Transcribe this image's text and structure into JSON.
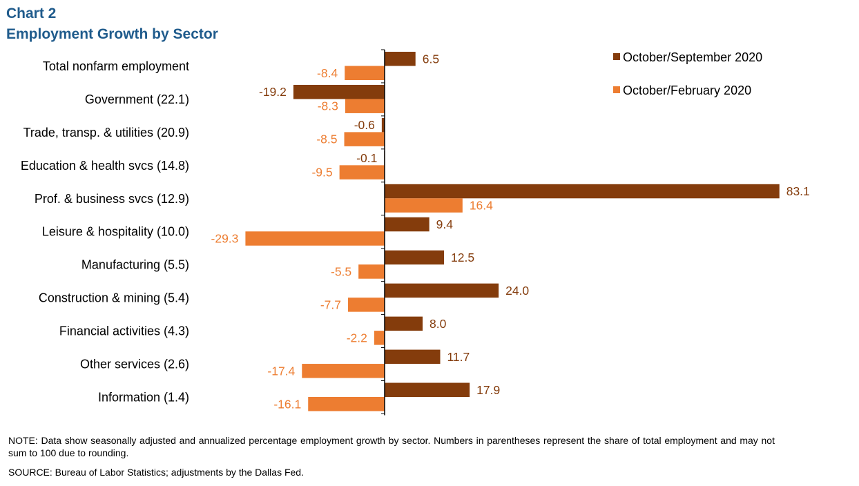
{
  "chart_data": {
    "type": "bar",
    "orientation": "horizontal",
    "title": "Chart 2",
    "subtitle": "Employment  Growth by Sector",
    "categories": [
      "Total nonfarm employment",
      "Government (22.1)",
      "Trade, transp. & utilities (20.9)",
      "Education & health svcs (14.8)",
      "Prof. & business svcs (12.9)",
      "Leisure & hospitality (10.0)",
      "Manufacturing (5.5)",
      "Construction & mining (5.4)",
      "Financial activities (4.3)",
      "Other services (2.6)",
      "Information (1.4)"
    ],
    "series": [
      {
        "name": "October/September 2020",
        "color": "#843c0c",
        "values": [
          6.5,
          -19.2,
          -0.6,
          -0.1,
          83.1,
          9.4,
          12.5,
          24.0,
          8.0,
          11.7,
          17.9
        ],
        "labels": [
          "6.5",
          "-19.2",
          "-0.6",
          "-0.1",
          "83.1",
          "9.4",
          "12.5",
          "24.0",
          "8.0",
          "11.7",
          "17.9"
        ]
      },
      {
        "name": "October/February 2020",
        "color": "#ed7d31",
        "values": [
          -8.4,
          -8.3,
          -8.5,
          -9.5,
          16.4,
          -29.3,
          -5.5,
          -7.7,
          -2.2,
          -17.4,
          -16.1
        ],
        "labels": [
          "-8.4",
          "-8.3",
          "-8.5",
          "-9.5",
          "16.4",
          "-29.3",
          "-5.5",
          "-7.7",
          "-2.2",
          "-17.4",
          "-16.1"
        ]
      }
    ],
    "legend_position": "top-right",
    "grid": false
  },
  "note": "NOTE:  Data show seasonally adjusted and annualized percentage employment growth by sector. Numbers in parentheses  represent the share of total employment  and may not sum to 100 due to rounding.",
  "source": "SOURCE:  Bureau of Labor Statistics; adjustments  by the Dallas Fed."
}
